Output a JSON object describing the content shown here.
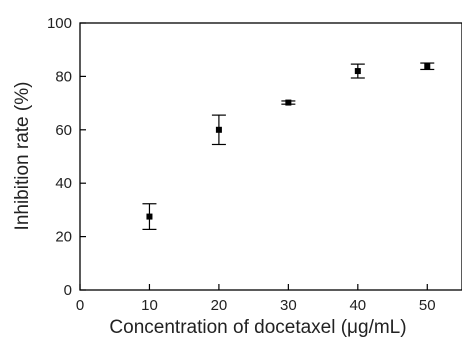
{
  "chart_data": {
    "type": "scatter",
    "xlabel": "Concentration of  docetaxel (μg/mL)",
    "ylabel": "Inhibition rate (%)",
    "xlim": [
      0,
      55
    ],
    "ylim": [
      0,
      100
    ],
    "x_ticks": [
      0,
      10,
      20,
      30,
      40,
      50
    ],
    "y_ticks": [
      0,
      20,
      40,
      60,
      80,
      100
    ],
    "grid": false,
    "marker": "square",
    "error_bars": true,
    "colors": {
      "marker": "#000000",
      "axis": "#000000",
      "text": "#222222"
    },
    "points": [
      {
        "x": 10,
        "y": 27.5,
        "err": 4.8
      },
      {
        "x": 20,
        "y": 60,
        "err": 5.5
      },
      {
        "x": 30,
        "y": 70.2,
        "err": 0.6
      },
      {
        "x": 40,
        "y": 82,
        "err": 2.6
      },
      {
        "x": 50,
        "y": 83.8,
        "err": 1.2
      }
    ]
  }
}
